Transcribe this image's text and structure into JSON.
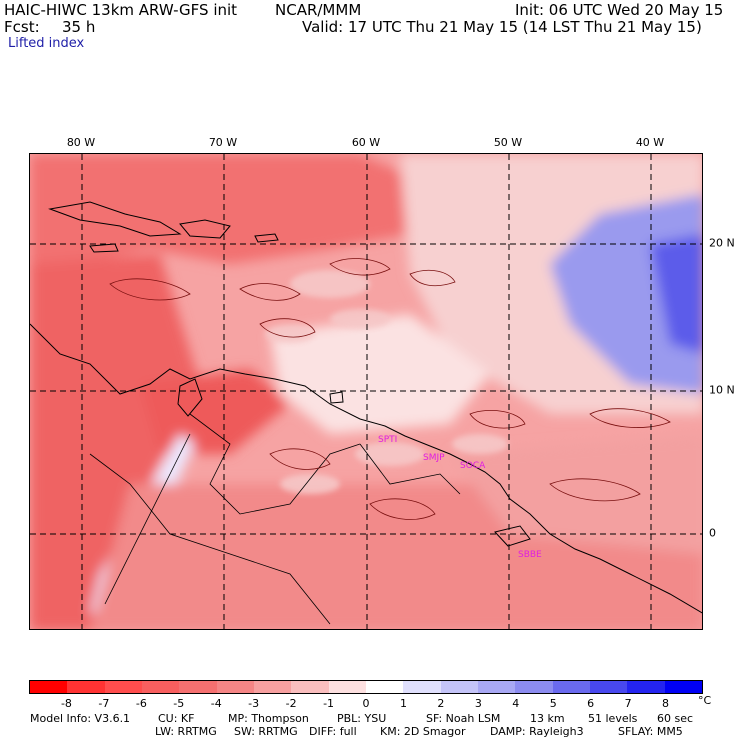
{
  "header": {
    "model_line": "HAIC-HIWC 13km ARW-GFS init",
    "org": "NCAR/MMM",
    "init": "Init: 06 UTC Wed 20 May 15",
    "fcst_label": "Fcst:",
    "fcst_value": "35 h",
    "valid": "Valid: 17 UTC Thu 21 May 15 (14 LST Thu 21 May 15)",
    "field": "Lifted index"
  },
  "map": {
    "lon_labels": [
      "80 W",
      "70 W",
      "60 W",
      "50 W",
      "40 W"
    ],
    "lat_labels": [
      "20 N",
      "10 N",
      "0"
    ],
    "stations": [
      "SPTI",
      "SMJP",
      "SOCA",
      "SBBE"
    ]
  },
  "colorbar": {
    "ticks": [
      "-8",
      "-7",
      "-6",
      "-5",
      "-4",
      "-3",
      "-2",
      "-1",
      "0",
      "1",
      "2",
      "3",
      "4",
      "5",
      "6",
      "7",
      "8"
    ],
    "unit": "°C",
    "colors": [
      "#ff0000",
      "#ff3333",
      "#ff4d4d",
      "#f85f5f",
      "#f57070",
      "#f58585",
      "#f7a0a0",
      "#fabebe",
      "#fde0e0",
      "#ffffff",
      "#e0e0fd",
      "#c4c4f8",
      "#a8a8f4",
      "#8c8cf0",
      "#6a6aee",
      "#4848ee",
      "#2424f0",
      "#0000f5"
    ]
  },
  "footer": {
    "line1_a": "Model Info: V3.6.1",
    "line1_b": "CU: KF",
    "line1_c": "MP: Thompson",
    "line1_d": "PBL: YSU",
    "line1_e": "SF: Noah LSM",
    "line1_f": "13 km",
    "line1_g": "51 levels",
    "line1_h": "60 sec",
    "line2_a": "LW: RRTMG",
    "line2_b": "SW: RRTMG",
    "line2_c": "DIFF: full",
    "line2_d": "KM: 2D Smagor",
    "line2_e": "DAMP: Rayleigh3",
    "line2_f": "SFLAY: MM5"
  }
}
